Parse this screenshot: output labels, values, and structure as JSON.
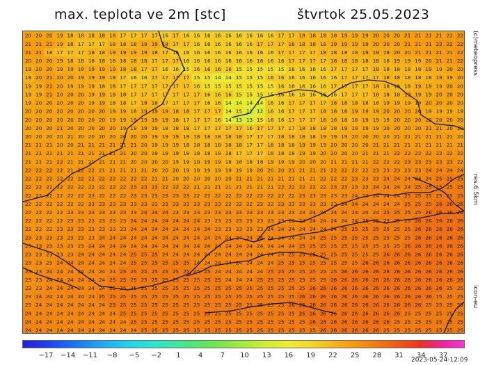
{
  "title": "max. teplota ve 2m [stc]",
  "date": "štvrtok 25.05.2023",
  "side_labels": {
    "brand": "(c)meteopress",
    "resolution": "res.6.5km",
    "model": "icon-eu"
  },
  "timestamp": "2023-05-24-12:09",
  "colorbar_ticks": [
    "−17",
    "−14",
    "−11",
    "−8",
    "−5",
    "−2",
    "1",
    "4",
    "7",
    "10",
    "13",
    "16",
    "19",
    "22",
    "25",
    "28",
    "31",
    "34",
    "37"
  ],
  "colorbar_colors": [
    "#2a1bd6",
    "#1e3cf0",
    "#1a66f5",
    "#1e90f5",
    "#22b7f0",
    "#25d6e6",
    "#2fe6c8",
    "#3fe69c",
    "#56e66a",
    "#7be64a",
    "#a6eb3c",
    "#cfee35",
    "#eeee30",
    "#f6d82a",
    "#f5b81e",
    "#f59a12",
    "#f27a10",
    "#ee5a14",
    "#ec3320",
    "#f0209a",
    "#f03ad8"
  ],
  "grid": {
    "rows": [
      "20 20 20 19 18 18 18 18 18 17 17 17 17 16 17 16 16 16 16 16 16 16 16 16 17 17 18 18 18 18 19 19 19 20 20 20 21 21 21 21 21 22",
      "21 21 21 19 18 17 17 17 18 18 18 19 19 18 17 17 16 16 16 16 16 16 17 17 17 18 18 18 18 19 19 19 19 20 20 20 21 21 21 22 22 22",
      "21 21 18 17 17 17 18 18 19 19 19 19 18 17 16 16 16 16 16 16 16 16 16 16 17 17 17 17 18 18 18 18 19 19 19 20 20 21 21 21 21 22",
      "20 20 20 19 18 18 18 18 18 18 18 18 17 17 17 16 16 16 16 16 16 16 16 16 16 17 17 17 17 18 18 18 18 18 18 19 19 19 20 21 21 22",
      "19 20 20 19 19 19 19 19 19 18 18 17 17 16 16 15 16 16 16 16 15 15 15 15 15 16 16 16 16 17 17 17 17 18 18 18 18 18 19 19 20 20",
      "18 20 21 20 20 19 19 19 18 17 16 16 17 17 17 17 15 15 14 14 15 15 15 16 16 16 16 16 16 16 17 17 17 17 18 18 18 18 18 19 19 20",
      "19 19 21 20 19 19 19 18 18 17 17 17 17 17 17 17 16 15 15 15 15 15 15 15 16 16 16 16 16 17 17 17 17 18 18 18 18 19 19 19 20 20",
      "19 19 21 20 20 20 19 19 18 18 17 17 17 17 17 17 17 16 16 16 15 15 15 15 16 16 16 16 16 16 17 17 17 18 18 18 19 19 19 20 20 20",
      "19 20 20 20 20 20 19 19 18 18 17 18 18 17 17 17 17 16 16 14 14 14 14 16 16 17 17 17 17 18 18 18 18 18 19 19 19 19 20 20 20 20",
      "20 20 20 20 20 20 20 20 19 19 18 19 19 19 18 18 17 17 17 14 15 12 12 16 16 17 17 17 18 18 18 19 19 19 20 20 20 20 19 19 19 19",
      "20 20 20 20 20 20 20 20 19 19 19 19 19 19 18 17 17 17 16 14 13 13 15 16 16 17 17 17 18 18 18 18 19 19 19 20 20 20 20 20 20 20",
      "20 20 20 21 20 20 20 20 20 19 19 19 19 18 18 18 17 17 17 17 17 16 17 17 17 17 18 18 18 18 19 19 19 19 20 20 20 20 21 21 20 20",
      "20 20 20 20 21 20 20 20 20 20 20 20 19 19 19 18 18 18 18 18 18 17 17 17 18 18 18 18 19 19 19 20 20 20 20 21 21 21 21 21 21 20",
      "21 21 21 20 20 21 21 21 21 21 21 20 19 19 19 18 18 18 18 18 18 17 17 18 18 18 19 19 19 20 20 20 20 21 21 21 21 21 21 21 21 21",
      "21 21 21 21 21 21 21 21 21 21 20 20 19 19 19 18 18 18 18 18 17 17 17 18 18 18 19 19 20 20 20 20 21 21 21 22 22 22 22 22 22 22",
      "21 21 21 22 21 21 21 21 21 21 20 20 20 20 19 19 19 19 19 18 18 18 18 19 19 19 20 20 20 21 21 21 21 22 22 22 23 23 23 23 23 22",
      "22 22 22 22 21 22 22 21 21 21 21 21 20 20 20 19 19 19 19 19 19 19 20 20 20 21 21 21 21 22 22 22 22 23 23 23 23 23 24 24 24 24",
      "22 22 22 22 22 22 22 22 22 22 22 22 21 21 20 20 20 20 20 20 21 21 21 21 21 21 21 21 22 22 22 23 23 23 24 24 24 24 24 25 25 25",
      "22 22 22 22 22 22 22 22 22 22 23 23 23 22 22 22 21 21 21 21 21 21 21 21 22 22 22 22 22 23 23 23 23 24 24 24 24 25 25 25 25 25",
      "22 22 22 22 22 22 23 22 22 22 23 23 23 23 23 23 22 22 22 22 22 22 22 22 22 22 23 23 23 23 23 24 24 24 24 24 25 25 25 25 25 25",
      "22 22 22 22 22 22 23 23 23 23 23 23 23 23 23 23 23 23 23 22 22 22 22 22 23 23 23 23 23 23 24 24 24 24 24 24 25 25 25 26 26 26",
      "22 22 22 22 23 23 23 23 23 23 23 24 24 24 23 23 23 23 23 23 23 23 23 23 23 23 23 24 24 24 24 24 24 24 25 25 25 25 26 26 26 26",
      "22 22 22 22 23 23 23 23 23 23 24 24 24 24 24 24 24 23 23 23 23 23 23 23 23 23 24 24 24 24 24 24 25 25 25 25 25 26 26 26 26 26",
      "22 22 22 23 23 23 23 23 23 23 24 24 24 24 24 24 24 24 23 23 23 23 23 24 24 24 24 24 24 24 25 25 25 25 25 25 25 26 26 26 26 26",
      "23 23 23 23 23 23 23 24 24 24 24 24 24 24 24 24 24 24 24 24 24 24 24 24 24 24 24 24 25 25 25 25 25 25 25 25 25 26 26 26 26 26",
      "23 23 23 23 23 23 24 24 24 24 24 24 24 24 24 24 24 24 24 24 24 24 24 24 24 24 25 25 25 25 25 25 25 25 25 25 26 26 26 26 26 26",
      "23 23 23 23 23 24 24 24 24 24 25 25 25 24 24 24 24 24 24 24 24 24 24 24 24 25 25 25 25 25 25 25 25 25 26 26 26 26 26 26 26 26",
      "23 23 23 24 24 24 24 24 24 24 25 25 25 25 25 25 24 24 24 24 24 24 24 24 25 25 25 25 25 25 25 25 26 26 26 26 26 26 26 26 26 26",
      "23 23 24 24 24 24 24 24 24 25 25 25 25 25 25 25 25 25 24 24 24 24 24 25 25 25 25 25 25 25 26 26 26 26 26 26 26 26 26 26 26 26",
      "23 23 24 24 24 24 24 24 25 25 25 25 25 25 25 25 25 25 25 24 24 24 25 25 25 25 25 25 25 26 26 26 26 26 26 26 26 26 26 26 26 26",
      "23 23 24 24 24 24 24 24 25 25 25 25 25 25 25 25 25 25 25 25 25 25 25 25 25 25 25 26 26 26 26 26 26 26 26 26 26 26 26 26 25 25",
      "23 24 24 24 24 24 24 25 25 25 25 25 25 25 25 25 25 25 25 25 25 25 25 25 25 25 26 26 26 26 26 26 26 26 26 26 26 26 26 25 25 25",
      "23 24 24 24 24 24 24 24 25 25 25 25 25 25 25 25 25 25 25 25 25 25 25 25 25 26 26 26 26 26 26 26 26 26 26 26 26 26 25 25 25 25",
      "24 24 24 24 24 24 24 24 24 25 25 25 25 25 25 25 25 25 25 25 25 25 25 25 25 25 26 26 26 26 26 26 26 26 26 26 25 25 25 25 25 25",
      "24 24 24 24 24 24 24 24 24 24 25 25 25 25 25 25 25 25 25 25 25 25 25 25 25 25 25 26 26 26 26 26 26 26 26 25 25 25 25 25 25 25",
      "24 24 24 24 24 24 24 24 24 24 24 25 25 25 25 25 25 25 25 25 25 25 25 25 25 25 25 25 26 26 26 26 26 26 25 25 25 25 25 25 25 25"
    ]
  }
}
